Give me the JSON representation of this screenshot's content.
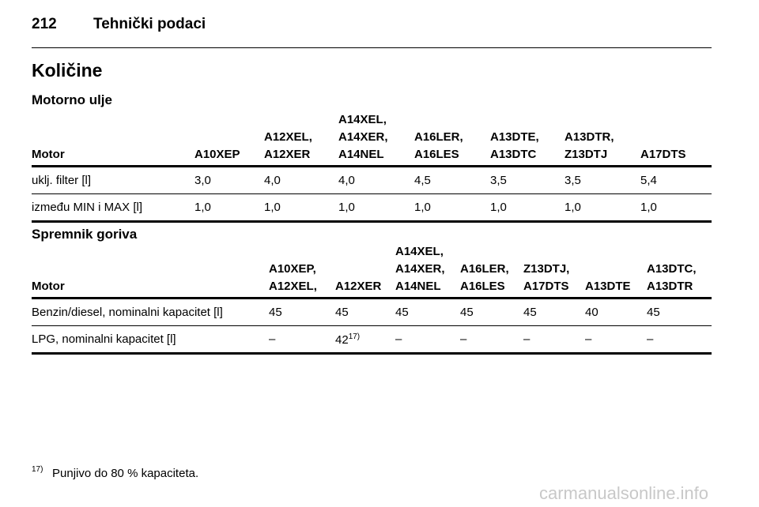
{
  "header": {
    "page_number": "212",
    "title": "Tehnički podaci"
  },
  "section_title": "Količine",
  "oil": {
    "title": "Motorno ulje",
    "columns": [
      "Motor",
      "A10XEP",
      "A12XEL,\nA12XER",
      "A14XEL,\nA14XER,\nA14NEL",
      "A16LER,\nA16LES",
      "A13DTE,\nA13DTC",
      "A13DTR,\nZ13DTJ",
      "A17DTS"
    ],
    "rows": [
      [
        "uklj. filter [l]",
        "3,0",
        "4,0",
        "4,0",
        "4,5",
        "3,5",
        "3,5",
        "5,4"
      ],
      [
        "između MIN i MAX [l]",
        "1,0",
        "1,0",
        "1,0",
        "1,0",
        "1,0",
        "1,0",
        "1,0"
      ]
    ]
  },
  "fuel": {
    "title": "Spremnik goriva",
    "columns": [
      "Motor",
      "A10XEP,\nA12XEL,",
      "A12XER",
      "A14XEL,\nA14XER,\nA14NEL",
      "A16LER,\nA16LES",
      "Z13DTJ,\nA17DTS",
      "A13DTE",
      "A13DTC,\nA13DTR"
    ],
    "rows": [
      [
        "Benzin/diesel, nominalni kapacitet [l]",
        "45",
        "45",
        "45",
        "45",
        "45",
        "40",
        "45"
      ],
      [
        "LPG, nominalni kapacitet [l]",
        "–",
        {
          "text": "42",
          "sup": "17)"
        },
        "–",
        "–",
        "–",
        "–",
        "–"
      ]
    ]
  },
  "footnote": {
    "marker": "17)",
    "text": "Punjivo do 80 % kapaciteta."
  },
  "watermark": "carmanualsonline.info"
}
